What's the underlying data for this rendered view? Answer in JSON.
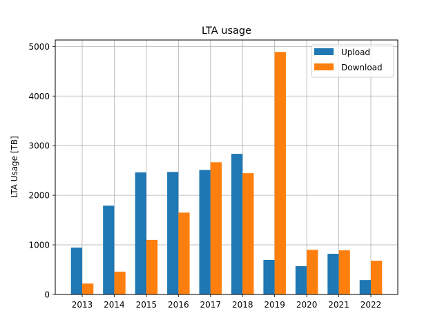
{
  "chart_data": {
    "type": "bar",
    "title": "LTA usage",
    "xlabel": "",
    "ylabel": "LTA Usage [TB]",
    "categories": [
      "2013",
      "2014",
      "2015",
      "2016",
      "2017",
      "2018",
      "2019",
      "2020",
      "2021",
      "2022"
    ],
    "series": [
      {
        "name": "Upload",
        "color": "#1f77b4",
        "values": [
          945,
          1790,
          2460,
          2470,
          2510,
          2835,
          695,
          570,
          820,
          290
        ]
      },
      {
        "name": "Download",
        "color": "#ff7f0e",
        "values": [
          220,
          460,
          1100,
          1650,
          2665,
          2445,
          4890,
          900,
          890,
          680
        ]
      }
    ],
    "ylim": [
      0,
      5130
    ],
    "yticks": [
      0,
      1000,
      2000,
      3000,
      4000,
      5000
    ],
    "grid": true,
    "legend_position": "top-right"
  }
}
